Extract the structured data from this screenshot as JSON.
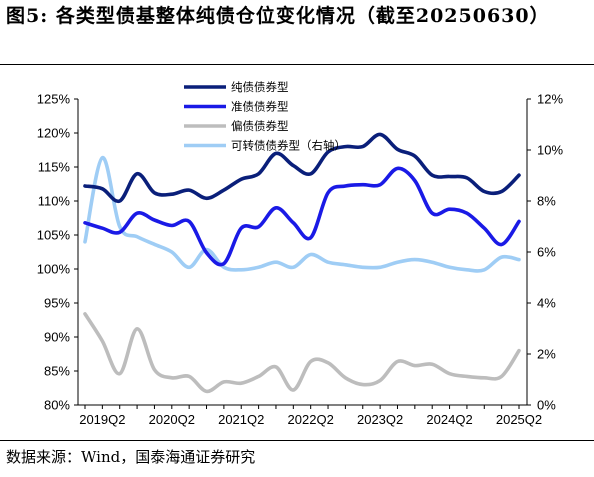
{
  "figure": {
    "title": "图5: 各类型债基整体纯债仓位变化情况（截至20250630）",
    "source": "数据来源：Wind，国泰海通证券研究"
  },
  "chart_data": {
    "type": "line",
    "title": "图5: 各类型债基整体纯债仓位变化情况（截至20250630）",
    "x": [
      "2019Q1",
      "2019Q2",
      "2019Q3",
      "2019Q4",
      "2020Q1",
      "2020Q2",
      "2020Q3",
      "2020Q4",
      "2021Q1",
      "2021Q2",
      "2021Q3",
      "2021Q4",
      "2022Q1",
      "2022Q2",
      "2022Q3",
      "2022Q4",
      "2023Q1",
      "2023Q2",
      "2023Q3",
      "2023Q4",
      "2024Q1",
      "2024Q2",
      "2024Q3",
      "2024Q4",
      "2025Q1",
      "2025Q2"
    ],
    "x_tick_labels": [
      "2019Q2",
      "2020Q2",
      "2021Q2",
      "2022Q2",
      "2023Q2",
      "2024Q2",
      "2025Q2"
    ],
    "y_left": {
      "ylim": [
        80,
        125
      ],
      "ticks": [
        "80%",
        "85%",
        "90%",
        "95%",
        "100%",
        "105%",
        "110%",
        "115%",
        "120%",
        "125%"
      ]
    },
    "y_right": {
      "ylim": [
        0,
        12
      ],
      "ticks": [
        "0%",
        "2%",
        "4%",
        "6%",
        "8%",
        "10%",
        "12%"
      ]
    },
    "legend_position": "top-center",
    "grid": false,
    "series": [
      {
        "name": "纯债债券型",
        "axis": "left",
        "color": "#0a1f7a",
        "values": [
          112.2,
          111.8,
          110.0,
          114.0,
          111.2,
          111.0,
          111.6,
          110.4,
          111.6,
          113.2,
          114.0,
          117.0,
          115.2,
          114.0,
          117.2,
          118.0,
          118.0,
          119.8,
          117.6,
          116.6,
          113.8,
          113.6,
          113.4,
          111.4,
          111.4,
          113.8
        ]
      },
      {
        "name": "准债债券型",
        "axis": "left",
        "color": "#1a1ae6",
        "values": [
          106.8,
          106.0,
          105.4,
          108.2,
          107.2,
          106.4,
          107.0,
          102.4,
          100.8,
          106.0,
          106.2,
          109.0,
          106.8,
          104.6,
          111.2,
          112.2,
          112.4,
          112.4,
          114.8,
          113.0,
          108.2,
          108.8,
          108.2,
          106.0,
          103.6,
          107.0
        ]
      },
      {
        "name": "偏债债券型",
        "axis": "left",
        "color": "#bdbdbd",
        "values": [
          93.4,
          89.4,
          84.6,
          91.2,
          85.2,
          84.0,
          84.2,
          82.0,
          83.4,
          83.2,
          84.2,
          85.6,
          82.2,
          86.4,
          86.2,
          84.0,
          83.0,
          83.6,
          86.4,
          85.8,
          86.0,
          84.6,
          84.2,
          84.0,
          84.2,
          88.0
        ]
      },
      {
        "name": "可转债债券型（右轴）",
        "axis": "right",
        "color": "#9fcdf5",
        "values": [
          6.4,
          9.7,
          7.0,
          6.6,
          6.3,
          6.0,
          5.4,
          6.1,
          5.4,
          5.3,
          5.4,
          5.6,
          5.4,
          5.9,
          5.6,
          5.5,
          5.4,
          5.4,
          5.6,
          5.7,
          5.6,
          5.4,
          5.3,
          5.3,
          5.8,
          5.7
        ]
      }
    ]
  }
}
